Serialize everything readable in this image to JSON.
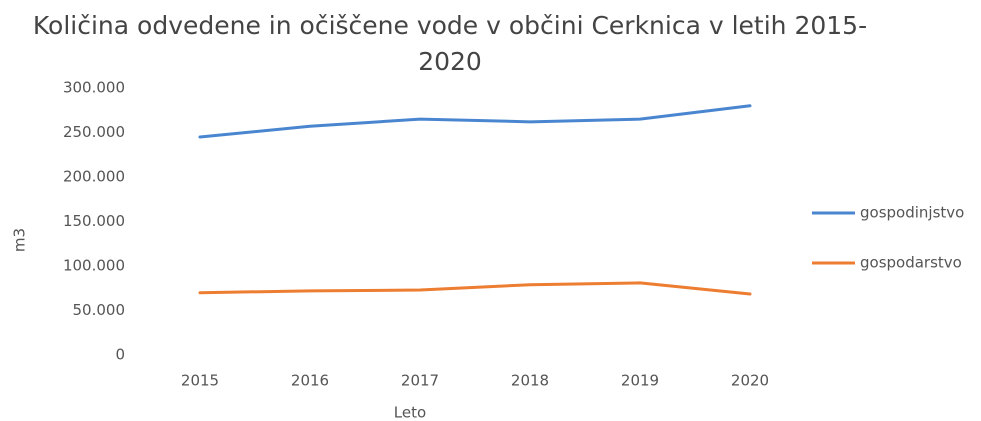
{
  "chart_data": {
    "type": "line",
    "title": "Količina odvedene in očiščene vode v občini Cerknica v letih 2015-2020",
    "x_label": "Leto",
    "y_label": "m3",
    "categories": [
      "2015",
      "2016",
      "2017",
      "2018",
      "2019",
      "2020"
    ],
    "series": [
      {
        "name": "gospodinjstvo",
        "color": "#4a86d0",
        "values": [
          245000,
          257000,
          265000,
          262000,
          265000,
          280000
        ]
      },
      {
        "name": "gospodarstvo",
        "color": "#ed7d31",
        "values": [
          70000,
          72000,
          73000,
          79000,
          81000,
          68500
        ]
      }
    ],
    "ylim": [
      0,
      300000
    ],
    "yticks": [
      0,
      {
        "value": 50000,
        "label": "50.000"
      },
      {
        "value": 100000,
        "label": "100.000"
      },
      {
        "value": 150000,
        "label": "150.000"
      },
      {
        "value": 200000,
        "label": "200.000"
      },
      {
        "value": 250000,
        "label": "250.000"
      },
      {
        "value": 300000,
        "label": "300.000"
      }
    ],
    "grid": false,
    "legend": "right"
  }
}
